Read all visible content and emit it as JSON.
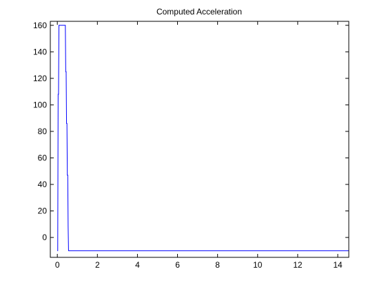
{
  "chart_data": {
    "type": "line",
    "title": "Computed Acceleration",
    "xlabel": "",
    "ylabel": "",
    "xlim": [
      -0.35,
      14.55
    ],
    "ylim": [
      -15,
      163
    ],
    "xticks": [
      0,
      2,
      4,
      6,
      8,
      10,
      12,
      14
    ],
    "yticks": [
      0,
      20,
      40,
      60,
      80,
      100,
      120,
      140,
      160
    ],
    "grid": false,
    "series": [
      {
        "color": "#0000ff",
        "x": [
          0,
          0.02,
          0.04,
          0.06,
          0.08,
          0.1,
          0.12,
          0.14,
          0.16,
          0.18,
          0.2,
          0.22,
          0.24,
          0.26,
          0.28,
          0.3,
          0.32,
          0.34,
          0.36,
          0.38,
          0.4,
          0.42,
          0.44,
          0.46,
          0.48,
          0.5,
          0.52,
          0.54,
          0.56,
          0.6,
          1,
          2,
          4,
          6,
          8,
          10,
          12,
          14,
          14.55
        ],
        "y": [
          -10,
          -10,
          108,
          108,
          160,
          160,
          160,
          160,
          160,
          160,
          160,
          160,
          160,
          160,
          160,
          160,
          160,
          160,
          160,
          160,
          160,
          125,
          125,
          86,
          86,
          47,
          47,
          8,
          -10,
          -10,
          -10,
          -10,
          -10,
          -10,
          -10,
          -10,
          -10,
          -10,
          -10
        ]
      }
    ]
  }
}
